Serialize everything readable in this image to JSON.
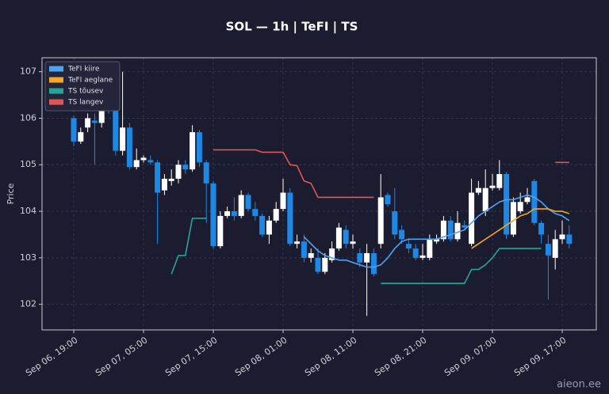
{
  "chart_data": {
    "type": "candlestick",
    "title": "SOL — 1h  |  TeFI  |  TS",
    "y_label": "Price",
    "watermark": "aieon.ee",
    "ylim": [
      101.45,
      107.3
    ],
    "yticks": [
      102,
      103,
      104,
      105,
      106,
      107
    ],
    "grid": true,
    "legend": "upper left",
    "up_color": "#ffffff",
    "down_color": "#1e88e5",
    "categories": [
      "Sep 06, 19:00",
      null,
      null,
      null,
      null,
      null,
      null,
      null,
      null,
      null,
      "Sep 07, 05:00",
      null,
      null,
      null,
      null,
      null,
      null,
      null,
      null,
      null,
      "Sep 07, 15:00",
      null,
      null,
      null,
      null,
      null,
      null,
      null,
      null,
      null,
      "Sep 08, 01:00",
      null,
      null,
      null,
      null,
      null,
      null,
      null,
      null,
      null,
      "Sep 08, 11:00",
      null,
      null,
      null,
      null,
      null,
      null,
      null,
      null,
      null,
      "Sep 08, 21:00",
      null,
      null,
      null,
      null,
      null,
      null,
      null,
      null,
      null,
      "Sep 09, 07:00",
      null,
      null,
      null,
      null,
      null,
      null,
      null,
      null,
      null,
      "Sep 09, 17:00",
      null
    ],
    "open": [
      106.0,
      105.5,
      105.8,
      105.95,
      105.9,
      106.5,
      106.2,
      105.3,
      105.8,
      104.95,
      105.1,
      105.1,
      105.05,
      104.45,
      104.65,
      104.7,
      105.0,
      104.9,
      105.7,
      105.05,
      104.6,
      103.25,
      103.9,
      104.0,
      103.9,
      104.35,
      104.05,
      103.9,
      103.5,
      103.8,
      104.05,
      104.4,
      103.3,
      103.35,
      103.0,
      103.0,
      102.7,
      102.95,
      103.2,
      103.6,
      103.3,
      103.1,
      102.9,
      103.1,
      103.3,
      104.35,
      104.0,
      103.6,
      103.3,
      103.2,
      103.0,
      103.0,
      103.35,
      103.4,
      103.8,
      103.4,
      103.7,
      103.3,
      104.4,
      104.0,
      104.5,
      104.5,
      104.8,
      103.5,
      104.0,
      104.2,
      104.65,
      103.75,
      103.3,
      103.0,
      103.4,
      103.5
    ],
    "high": [
      106.05,
      105.8,
      106.1,
      106.1,
      106.6,
      106.6,
      106.3,
      107.0,
      105.9,
      105.35,
      105.2,
      105.2,
      105.1,
      104.8,
      104.9,
      105.1,
      105.1,
      105.85,
      105.75,
      105.1,
      104.65,
      104.0,
      104.1,
      104.3,
      104.45,
      104.4,
      104.2,
      103.95,
      103.9,
      104.2,
      104.7,
      104.5,
      103.5,
      103.5,
      103.2,
      103.2,
      103.1,
      103.35,
      103.75,
      103.7,
      103.5,
      103.2,
      103.3,
      103.2,
      104.8,
      104.4,
      104.5,
      103.7,
      103.4,
      103.3,
      103.3,
      103.5,
      103.5,
      103.9,
      103.9,
      104.0,
      103.8,
      104.7,
      104.65,
      104.9,
      104.8,
      105.1,
      104.85,
      104.3,
      104.4,
      104.5,
      104.7,
      103.8,
      103.5,
      103.6,
      103.8,
      103.7
    ],
    "low": [
      105.4,
      105.45,
      105.7,
      105.0,
      105.8,
      106.1,
      105.2,
      105.2,
      104.9,
      104.9,
      105.05,
      105.0,
      103.3,
      104.35,
      104.55,
      104.6,
      104.8,
      104.85,
      104.95,
      103.75,
      103.2,
      103.2,
      103.85,
      103.8,
      103.85,
      104.0,
      103.8,
      103.45,
      103.3,
      103.75,
      104.0,
      103.25,
      103.2,
      102.9,
      102.9,
      102.65,
      102.65,
      102.9,
      103.15,
      103.2,
      103.2,
      102.8,
      101.75,
      102.6,
      103.2,
      104.1,
      103.4,
      103.3,
      103.1,
      102.95,
      102.95,
      102.95,
      103.3,
      103.35,
      103.35,
      103.35,
      103.6,
      103.25,
      104.35,
      103.9,
      104.45,
      104.45,
      103.4,
      103.45,
      103.95,
      104.15,
      103.7,
      103.3,
      102.1,
      102.75,
      103.3,
      103.2
    ],
    "close": [
      105.5,
      105.7,
      106.0,
      105.9,
      106.2,
      106.2,
      105.3,
      105.8,
      104.95,
      105.1,
      105.15,
      105.05,
      104.4,
      104.7,
      104.7,
      105.0,
      104.9,
      105.7,
      105.05,
      104.6,
      103.25,
      103.9,
      104.0,
      103.9,
      104.35,
      104.05,
      103.9,
      103.5,
      103.8,
      104.05,
      104.4,
      103.3,
      103.35,
      103.0,
      103.1,
      102.7,
      103.0,
      103.2,
      103.65,
      103.3,
      103.35,
      102.9,
      103.1,
      102.65,
      104.3,
      104.15,
      103.5,
      103.4,
      103.2,
      103.0,
      103.05,
      103.4,
      103.4,
      103.8,
      103.4,
      103.75,
      103.65,
      104.4,
      104.5,
      104.5,
      104.55,
      104.8,
      103.5,
      104.2,
      104.2,
      104.3,
      103.75,
      103.5,
      103.05,
      103.4,
      103.5,
      103.3
    ],
    "series": [
      {
        "name": "TeFI kiire",
        "color": "#4ea3f5",
        "values": [
          null,
          null,
          null,
          null,
          null,
          null,
          null,
          null,
          null,
          null,
          null,
          null,
          null,
          null,
          null,
          null,
          null,
          null,
          null,
          null,
          null,
          null,
          null,
          null,
          null,
          null,
          null,
          null,
          null,
          null,
          null,
          null,
          null,
          103.45,
          103.3,
          103.15,
          103.05,
          103.0,
          102.95,
          102.95,
          102.9,
          102.85,
          102.8,
          102.8,
          102.85,
          103.0,
          103.2,
          103.35,
          103.4,
          103.4,
          103.4,
          103.4,
          103.4,
          103.45,
          103.5,
          103.55,
          103.6,
          103.75,
          103.9,
          104.0,
          104.1,
          104.2,
          104.25,
          104.25,
          104.3,
          104.35,
          104.3,
          104.2,
          104.05,
          103.95,
          103.9,
          103.8
        ]
      },
      {
        "name": "TeFI aeglane",
        "color": "#f5a623",
        "values": [
          null,
          null,
          null,
          null,
          null,
          null,
          null,
          null,
          null,
          null,
          null,
          null,
          null,
          null,
          null,
          null,
          null,
          null,
          null,
          null,
          null,
          null,
          null,
          null,
          null,
          null,
          null,
          null,
          null,
          null,
          null,
          null,
          null,
          null,
          null,
          null,
          null,
          null,
          null,
          null,
          null,
          null,
          null,
          null,
          null,
          null,
          null,
          null,
          null,
          null,
          null,
          null,
          null,
          null,
          null,
          null,
          null,
          103.2,
          103.3,
          103.4,
          103.5,
          103.6,
          103.7,
          103.8,
          103.9,
          103.95,
          104.05,
          104.05,
          104.05,
          104.0,
          104.0,
          103.95
        ]
      },
      {
        "name": "TS tõusev",
        "color": "#26a69a",
        "values": [
          null,
          null,
          null,
          null,
          null,
          null,
          null,
          null,
          null,
          null,
          null,
          null,
          null,
          null,
          102.65,
          103.05,
          103.05,
          103.85,
          103.85,
          103.85,
          null,
          null,
          null,
          null,
          null,
          null,
          null,
          null,
          null,
          null,
          null,
          null,
          null,
          null,
          null,
          null,
          null,
          null,
          null,
          null,
          null,
          null,
          null,
          null,
          102.45,
          102.45,
          102.45,
          102.45,
          102.45,
          102.45,
          102.45,
          102.45,
          102.45,
          102.45,
          102.45,
          102.45,
          102.45,
          102.75,
          102.75,
          102.85,
          103.0,
          103.2,
          103.2,
          103.2,
          103.2,
          103.2,
          103.2,
          103.2,
          null,
          null,
          null,
          null
        ]
      },
      {
        "name": "TS langev",
        "color": "#e05555",
        "values": [
          null,
          null,
          null,
          null,
          null,
          null,
          null,
          null,
          null,
          null,
          null,
          null,
          null,
          null,
          null,
          null,
          null,
          null,
          null,
          null,
          105.32,
          105.32,
          105.32,
          105.32,
          105.32,
          105.32,
          105.32,
          105.27,
          105.27,
          105.27,
          105.27,
          105.0,
          104.98,
          104.65,
          104.6,
          104.3,
          104.3,
          104.3,
          104.3,
          104.3,
          104.3,
          104.3,
          104.3,
          104.3,
          null,
          null,
          null,
          null,
          null,
          null,
          null,
          null,
          null,
          null,
          null,
          null,
          null,
          null,
          null,
          null,
          null,
          null,
          null,
          null,
          null,
          null,
          null,
          null,
          null,
          105.05,
          105.05,
          105.05
        ]
      }
    ]
  }
}
